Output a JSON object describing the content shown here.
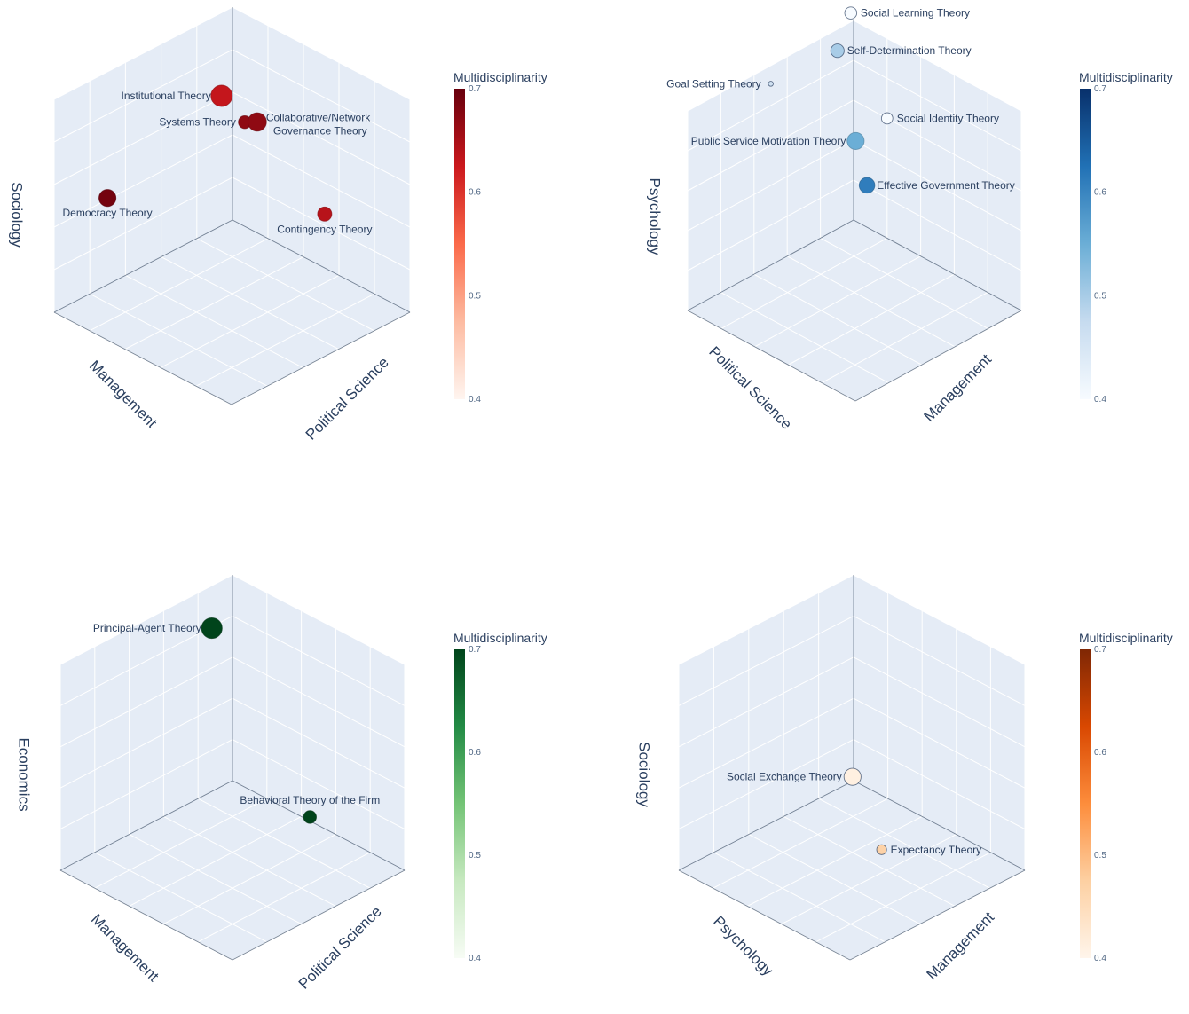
{
  "chart_data": [
    {
      "type": "scatter3d",
      "axes": {
        "a": "Political Science",
        "b": "Management",
        "z": "Sociology"
      },
      "colorbar": {
        "title": "Multidisciplinarity",
        "ticks": [
          "0.7",
          "0.6",
          "0.5",
          "0.4"
        ],
        "range": [
          0.4,
          0.7
        ],
        "colors": [
          "#fff5f0",
          "#fdbba1",
          "#fb6a4a",
          "#cb181d",
          "#67000d"
        ]
      },
      "points": [
        {
          "label": "Institutional Theory",
          "value": 0.63,
          "size": 3.0,
          "a": 0.22,
          "b": 0.28,
          "z": 0.8
        },
        {
          "label": "Systems Theory",
          "value": 0.67,
          "size": 1.8,
          "a": 0.22,
          "b": 0.15,
          "z": 0.62
        },
        {
          "label": "Collaborative/Network Governance Theory",
          "value": 0.67,
          "size": 2.6,
          "a": 0.3,
          "b": 0.16,
          "z": 0.66
        },
        {
          "label": "Democracy Theory",
          "value": 0.69,
          "size": 2.4,
          "a": 0.2,
          "b": 0.9,
          "z": 0.58
        },
        {
          "label": "Contingency Theory",
          "value": 0.64,
          "size": 2.0,
          "a": 0.62,
          "b": 0.1,
          "z": 0.34
        }
      ]
    },
    {
      "type": "scatter3d",
      "axes": {
        "a": "Political Science",
        "b": "Management",
        "z": "Psychology"
      },
      "colorbar": {
        "title": "Multidisciplinarity",
        "ticks": [
          "0.7",
          "0.6",
          "0.5",
          "0.4"
        ],
        "range": [
          0.4,
          0.7
        ],
        "colors": [
          "#f7fbff",
          "#c6dbef",
          "#6baed6",
          "#2171b5",
          "#08306b"
        ]
      },
      "points": [
        {
          "label": "Social Learning Theory",
          "value": 0.4,
          "size": 1.7,
          "a": 0.3,
          "b": 0.28,
          "z": 1.3
        },
        {
          "label": "Self-Determination Theory",
          "value": 0.5,
          "size": 1.9,
          "a": 0.35,
          "b": 0.25,
          "z": 1.12
        },
        {
          "label": "Goal Setting Theory",
          "value": 0.46,
          "size": 0.7,
          "a": 0.6,
          "b": 0.1,
          "z": 1.0
        },
        {
          "label": "Public Service Motivation Theory",
          "value": 0.55,
          "size": 2.4,
          "a": 0.22,
          "b": 0.23,
          "z": 0.6
        },
        {
          "label": "Social Identity Theory",
          "value": 0.4,
          "size": 1.6,
          "a": 0.0,
          "b": 0.2,
          "z": 0.6
        },
        {
          "label": "Effective Government Theory",
          "value": 0.61,
          "size": 2.2,
          "a": 0.0,
          "b": 0.08,
          "z": 0.21
        }
      ]
    },
    {
      "type": "scatter3d",
      "axes": {
        "a": "Political Science",
        "b": "Management",
        "z": "Economics"
      },
      "colorbar": {
        "title": "Multidisciplinarity",
        "ticks": [
          "0.7",
          "0.6",
          "0.5",
          "0.4"
        ],
        "range": [
          0.4,
          0.7
        ],
        "colors": [
          "#f7fcf5",
          "#c7e9c0",
          "#74c476",
          "#238b45",
          "#00441b"
        ]
      },
      "points": [
        {
          "label": "Principal-Agent Theory",
          "value": 0.7,
          "size": 2.9,
          "a": 0.18,
          "b": 0.3,
          "z": 0.95
        },
        {
          "label": "Behavioral Theory of the Firm",
          "value": 0.7,
          "size": 1.8,
          "a": 0.6,
          "b": 0.15,
          "z": 0.15
        }
      ]
    },
    {
      "type": "scatter3d",
      "axes": {
        "a": "Psychology",
        "b": "Management",
        "z": "Sociology"
      },
      "colorbar": {
        "title": "Multidisciplinarity",
        "ticks": [
          "0.7",
          "0.6",
          "0.5",
          "0.4"
        ],
        "range": [
          0.4,
          0.7
        ],
        "colors": [
          "#fff5eb",
          "#fdd0a2",
          "#fd8d3c",
          "#d94801",
          "#7f2704"
        ]
      },
      "points": [
        {
          "label": "Social Exchange Theory",
          "value": 0.41,
          "size": 2.4,
          "a": 0.3,
          "b": 0.3,
          "z": 0.28
        },
        {
          "label": "Expectancy Theory",
          "value": 0.47,
          "size": 1.4,
          "a": 0.3,
          "b": 0.47,
          "z": 0.0
        }
      ]
    }
  ]
}
